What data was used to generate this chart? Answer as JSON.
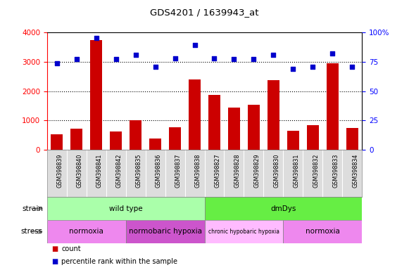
{
  "title": "GDS4201 / 1639943_at",
  "categories": [
    "GSM398839",
    "GSM398840",
    "GSM398841",
    "GSM398842",
    "GSM398835",
    "GSM398836",
    "GSM398837",
    "GSM398838",
    "GSM398827",
    "GSM398828",
    "GSM398829",
    "GSM398830",
    "GSM398831",
    "GSM398832",
    "GSM398833",
    "GSM398834"
  ],
  "counts": [
    520,
    720,
    3750,
    630,
    1020,
    380,
    780,
    2400,
    1870,
    1430,
    1530,
    2380,
    650,
    850,
    2950,
    750
  ],
  "percentiles": [
    74,
    77,
    95,
    77,
    81,
    71,
    78,
    89,
    78,
    77,
    77,
    81,
    69,
    71,
    82,
    71
  ],
  "bar_color": "#cc0000",
  "dot_color": "#0000cc",
  "ylim_left": [
    0,
    4000
  ],
  "ylim_right": [
    0,
    100
  ],
  "yticks_left": [
    0,
    1000,
    2000,
    3000,
    4000
  ],
  "yticks_right": [
    0,
    25,
    50,
    75,
    100
  ],
  "strain_groups": [
    {
      "label": "wild type",
      "start": 0,
      "end": 8,
      "color": "#aaffaa"
    },
    {
      "label": "dmDys",
      "start": 8,
      "end": 16,
      "color": "#66ee44"
    }
  ],
  "stress_groups": [
    {
      "label": "normoxia",
      "start": 0,
      "end": 4,
      "color": "#ee88ee"
    },
    {
      "label": "normobaric hypoxia",
      "start": 4,
      "end": 8,
      "color": "#cc55cc"
    },
    {
      "label": "chronic hypobaric hypoxia",
      "start": 8,
      "end": 12,
      "color": "#ffbbff"
    },
    {
      "label": "normoxia",
      "start": 12,
      "end": 16,
      "color": "#ee88ee"
    }
  ],
  "legend_count_label": "count",
  "legend_pct_label": "percentile rank within the sample",
  "strain_label": "strain",
  "stress_label": "stress"
}
